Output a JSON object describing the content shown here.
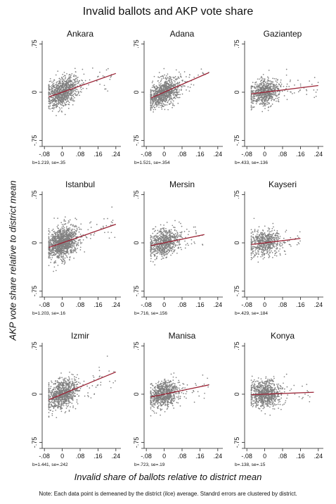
{
  "figure": {
    "title": "Invalid ballots and AKP vote share",
    "ylabel": "AKP vote share relative to district mean",
    "xlabel": "Invalid share of ballots relative to district mean",
    "note": "Note: Each data point is demeaned by the district (ilce) average. Standrd errors are clustered by district."
  },
  "colors": {
    "points": "#808080",
    "fit_line": "#9b2335",
    "axis": "#222222"
  },
  "chart_data": [
    {
      "type": "scatter",
      "title": "Ankara",
      "caption": "b=1.219, se=.35",
      "slope": 1.219,
      "x_range": [
        -0.06,
        0.24
      ],
      "y_center": 0.0,
      "intercept": 0.0,
      "x_spread": 0.035,
      "y_spread": 0.22,
      "n_points": 900,
      "xlim": [
        -0.09,
        0.25
      ],
      "ylim": [
        -0.8,
        0.8
      ],
      "xticks": [
        -0.08,
        0,
        0.08,
        0.16,
        0.24
      ],
      "xtick_labels": [
        "-.08",
        "0",
        ".08",
        ".16",
        ".24"
      ],
      "yticks": [
        0.75,
        0,
        -0.75
      ],
      "ytick_labels": [
        ".75",
        "0",
        "-.75"
      ]
    },
    {
      "type": "scatter",
      "title": "Adana",
      "caption": "b=1.521, se=.354",
      "slope": 1.521,
      "x_range": [
        -0.06,
        0.2
      ],
      "y_center": 0.0,
      "intercept": 0.0,
      "x_spread": 0.035,
      "y_spread": 0.2,
      "n_points": 900,
      "xlim": [
        -0.09,
        0.25
      ],
      "ylim": [
        -0.8,
        0.8
      ],
      "xticks": [
        -0.08,
        0,
        0.08,
        0.16,
        0.24
      ],
      "xtick_labels": [
        "-.08",
        "0",
        ".08",
        ".16",
        ".24"
      ],
      "yticks": [
        0.75,
        0,
        -0.75
      ],
      "ytick_labels": [
        ".75",
        "0",
        "-.75"
      ]
    },
    {
      "type": "scatter",
      "title": "Gaziantep",
      "caption": "b=.433, se=.136",
      "slope": 0.433,
      "x_range": [
        -0.06,
        0.24
      ],
      "y_center": 0.0,
      "intercept": 0.0,
      "x_spread": 0.035,
      "y_spread": 0.2,
      "n_points": 700,
      "xlim": [
        -0.09,
        0.25
      ],
      "ylim": [
        -0.8,
        0.8
      ],
      "xticks": [
        -0.08,
        0,
        0.08,
        0.16,
        0.24
      ],
      "xtick_labels": [
        "-.08",
        "0",
        ".08",
        ".16",
        ".24"
      ],
      "yticks": [
        0.75,
        0,
        -0.75
      ],
      "ytick_labels": [
        ".75",
        "0",
        "-.75"
      ]
    },
    {
      "type": "scatter",
      "title": "Istanbul",
      "caption": "b=1.203, se=.16",
      "slope": 1.203,
      "x_range": [
        -0.06,
        0.24
      ],
      "y_center": 0.0,
      "intercept": 0.0,
      "x_spread": 0.035,
      "y_spread": 0.24,
      "n_points": 1200,
      "xlim": [
        -0.09,
        0.25
      ],
      "ylim": [
        -0.8,
        0.8
      ],
      "xticks": [
        -0.08,
        0,
        0.08,
        0.16,
        0.24
      ],
      "xtick_labels": [
        "-.08",
        "0",
        ".08",
        ".16",
        ".24"
      ],
      "yticks": [
        0.75,
        0,
        -0.75
      ],
      "ytick_labels": [
        ".75",
        "0",
        "-.75"
      ]
    },
    {
      "type": "scatter",
      "title": "Mersin",
      "caption": "b=.716, se=.156",
      "slope": 0.716,
      "x_range": [
        -0.06,
        0.18
      ],
      "y_center": 0.0,
      "intercept": 0.0,
      "x_spread": 0.035,
      "y_spread": 0.2,
      "n_points": 700,
      "xlim": [
        -0.09,
        0.25
      ],
      "ylim": [
        -0.8,
        0.8
      ],
      "xticks": [
        -0.08,
        0,
        0.08,
        0.16,
        0.24
      ],
      "xtick_labels": [
        "-.08",
        "0",
        ".08",
        ".16",
        ".24"
      ],
      "yticks": [
        0.75,
        0,
        -0.75
      ],
      "ytick_labels": [
        ".75",
        "0",
        "-.75"
      ]
    },
    {
      "type": "scatter",
      "title": "Kayseri",
      "caption": "b=.429, se=.184",
      "slope": 0.429,
      "x_range": [
        -0.06,
        0.16
      ],
      "y_center": 0.0,
      "intercept": 0.0,
      "x_spread": 0.035,
      "y_spread": 0.2,
      "n_points": 600,
      "xlim": [
        -0.09,
        0.25
      ],
      "ylim": [
        -0.8,
        0.8
      ],
      "xticks": [
        -0.08,
        0,
        0.08,
        0.16,
        0.24
      ],
      "xtick_labels": [
        "-.08",
        "0",
        ".08",
        ".16",
        ".24"
      ],
      "yticks": [
        0.75,
        0,
        -0.75
      ],
      "ytick_labels": [
        ".75",
        "0",
        "-.75"
      ]
    },
    {
      "type": "scatter",
      "title": "Izmir",
      "caption": "b=1.441, se=.242",
      "slope": 1.441,
      "x_range": [
        -0.06,
        0.24
      ],
      "y_center": 0.0,
      "intercept": 0.0,
      "x_spread": 0.035,
      "y_spread": 0.22,
      "n_points": 900,
      "xlim": [
        -0.09,
        0.25
      ],
      "ylim": [
        -0.8,
        0.8
      ],
      "xticks": [
        -0.08,
        0,
        0.08,
        0.16,
        0.24
      ],
      "xtick_labels": [
        "-.08",
        "0",
        ".08",
        ".16",
        ".24"
      ],
      "yticks": [
        0.75,
        0,
        -0.75
      ],
      "ytick_labels": [
        ".75",
        "0",
        "-.75"
      ]
    },
    {
      "type": "scatter",
      "title": "Manisa",
      "caption": "b=.723, se=.19",
      "slope": 0.723,
      "x_range": [
        -0.06,
        0.2
      ],
      "y_center": 0.0,
      "intercept": 0.0,
      "x_spread": 0.035,
      "y_spread": 0.2,
      "n_points": 800,
      "xlim": [
        -0.09,
        0.25
      ],
      "ylim": [
        -0.8,
        0.8
      ],
      "xticks": [
        -0.08,
        0,
        0.08,
        0.16,
        0.24
      ],
      "xtick_labels": [
        "-.08",
        "0",
        ".08",
        ".16",
        ".24"
      ],
      "yticks": [
        0.75,
        0,
        -0.75
      ],
      "ytick_labels": [
        ".75",
        "0",
        "-.75"
      ]
    },
    {
      "type": "scatter",
      "title": "Konya",
      "caption": "b=.138, se=.15",
      "slope": 0.138,
      "x_range": [
        -0.06,
        0.22
      ],
      "y_center": 0.0,
      "intercept": 0.0,
      "x_spread": 0.035,
      "y_spread": 0.2,
      "n_points": 800,
      "xlim": [
        -0.09,
        0.25
      ],
      "ylim": [
        -0.8,
        0.8
      ],
      "xticks": [
        -0.08,
        0,
        0.08,
        0.16,
        0.24
      ],
      "xtick_labels": [
        "-.08",
        "0",
        ".08",
        ".16",
        ".24"
      ],
      "yticks": [
        0.75,
        0,
        -0.75
      ],
      "ytick_labels": [
        ".75",
        "0",
        "-.75"
      ]
    }
  ]
}
